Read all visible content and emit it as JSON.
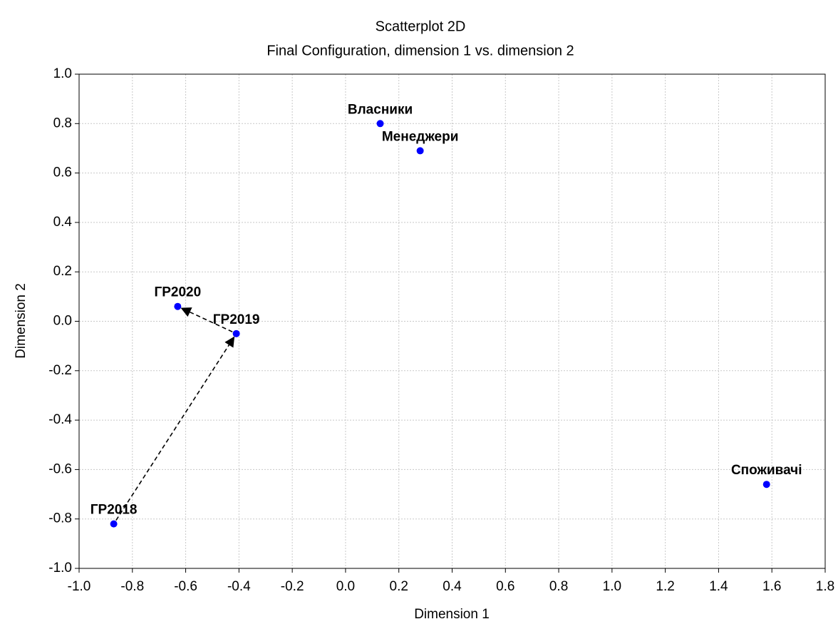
{
  "chart_data": {
    "type": "scatter",
    "title": "Scatterplot 2D",
    "subtitle": "Final Configuration, dimension 1  vs. dimension 2",
    "x_label": "Dimension 1",
    "y_label": "Dimension 2",
    "labels": [
      "Власники",
      "Менеджери",
      "ГР2020",
      "ГР2019",
      "ГР2018",
      "Споживачі"
    ],
    "x": [
      0.13,
      0.28,
      -0.63,
      -0.41,
      -0.87,
      1.58
    ],
    "values": [
      0.8,
      0.69,
      0.06,
      -0.05,
      -0.82,
      -0.66
    ],
    "color": "#0000ff",
    "xlim": [
      -1.0,
      1.8
    ],
    "ylim": [
      -1.0,
      1.0
    ],
    "xticks": [
      {
        "value": -1.0,
        "label": "-1.0"
      },
      -0.8,
      -0.6,
      -0.4,
      -0.2,
      {
        "value": 0,
        "label": "0.0"
      },
      0.2,
      0.4,
      0.6,
      0.8,
      {
        "value": 1.0,
        "label": "1.0"
      },
      1.2,
      1.4,
      1.6,
      1.8
    ],
    "yticks": [
      {
        "value": -1.0,
        "label": "-1.0"
      },
      -0.8,
      -0.6,
      -0.4,
      -0.2,
      {
        "value": 0,
        "label": "0.0"
      },
      0.2,
      0.4,
      0.6,
      0.8,
      {
        "value": 1.0,
        "label": "1.0"
      }
    ],
    "grid": true
  }
}
